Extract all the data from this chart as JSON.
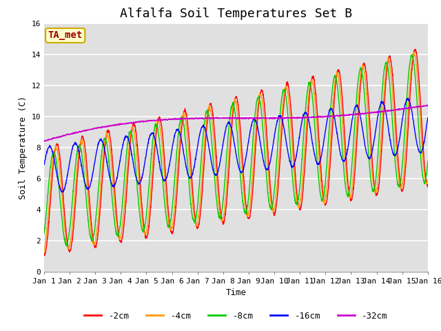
{
  "title": "Alfalfa Soil Temperatures Set B",
  "xlabel": "Time",
  "ylabel": "Soil Temperature (C)",
  "xlim": [
    0,
    15
  ],
  "ylim": [
    0,
    16
  ],
  "xtick_labels": [
    "Jan 1",
    "Jan 2",
    "Jan 3",
    "Jan 4",
    "Jan 5",
    "Jan 6",
    "Jan 7",
    "Jan 8",
    "Jan 9",
    "Jan 10",
    "Jan 11",
    "Jan 12",
    "Jan 13",
    "Jan 14",
    "Jan 15",
    "Jan 16"
  ],
  "ytick_vals": [
    0,
    2,
    4,
    6,
    8,
    10,
    12,
    14,
    16
  ],
  "annotation_text": "TA_met",
  "annotation_bg": "#ffffcc",
  "annotation_border": "#ccaa00",
  "annotation_textcolor": "#990000",
  "series_colors": [
    "#ff0000",
    "#ff9900",
    "#00cc00",
    "#0000ff",
    "#cc00cc"
  ],
  "series_labels": [
    "-2cm",
    "-4cm",
    "-8cm",
    "-16cm",
    "-32cm"
  ],
  "bg_color": "#e0e0e0",
  "grid_color": "#ffffff",
  "title_fontsize": 13,
  "axis_label_fontsize": 9,
  "tick_fontsize": 8,
  "legend_fontsize": 9
}
